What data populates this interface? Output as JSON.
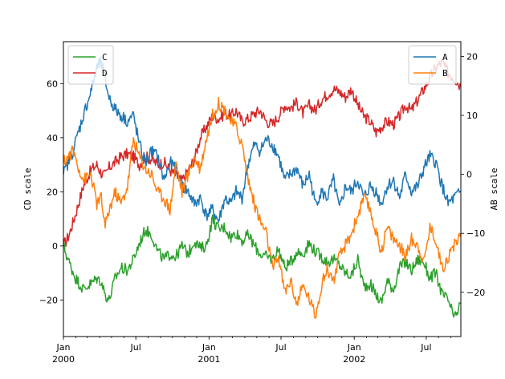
{
  "chart_data": {
    "type": "line",
    "title": "",
    "xlabel": "",
    "x_range": [
      "2000-01-01",
      "2002-09-26"
    ],
    "x_major_ticks": [
      {
        "date": "2000-01-01",
        "label": "Jan",
        "year": "2000"
      },
      {
        "date": "2000-07-01",
        "label": "Jul",
        "year": ""
      },
      {
        "date": "2001-01-01",
        "label": "Jan",
        "year": "2001"
      },
      {
        "date": "2001-07-01",
        "label": "Jul",
        "year": ""
      },
      {
        "date": "2002-01-01",
        "label": "Jan",
        "year": "2002"
      },
      {
        "date": "2002-07-01",
        "label": "Jul",
        "year": ""
      }
    ],
    "left_axis": {
      "label": "CD scale",
      "ylim": [
        -33.5,
        75.5
      ],
      "ticks": [
        -20,
        0,
        20,
        40,
        60
      ]
    },
    "right_axis": {
      "label": "AB scale",
      "ylim": [
        -27.5,
        22.5
      ],
      "ticks": [
        -20,
        -10,
        0,
        10,
        20
      ]
    },
    "legends": {
      "left": {
        "position": "upper-left",
        "entries": [
          "C",
          "D"
        ]
      },
      "right": {
        "position": "upper-right",
        "entries": [
          "A",
          "B"
        ]
      }
    },
    "series": [
      {
        "name": "A",
        "axis": "right",
        "color": "#1f77b4",
        "x": [
          "2000-01-01",
          "2000-01-25",
          "2000-02-20",
          "2000-03-10",
          "2000-03-25",
          "2000-04-05",
          "2000-04-15",
          "2000-04-25",
          "2000-05-10",
          "2000-05-25",
          "2000-06-10",
          "2000-06-25",
          "2000-07-10",
          "2000-07-25",
          "2000-08-10",
          "2000-08-25",
          "2000-09-10",
          "2000-09-25",
          "2000-10-10",
          "2000-10-25",
          "2000-11-10",
          "2000-11-25",
          "2000-12-10",
          "2000-12-25",
          "2001-01-10",
          "2001-01-25",
          "2001-02-10",
          "2001-02-25",
          "2001-03-10",
          "2001-03-25",
          "2001-04-10",
          "2001-04-25",
          "2001-05-10",
          "2001-05-25",
          "2001-06-10",
          "2001-06-25",
          "2001-07-10",
          "2001-07-25",
          "2001-08-10",
          "2001-08-25",
          "2001-09-10",
          "2001-09-25",
          "2001-10-10",
          "2001-10-25",
          "2001-11-10",
          "2001-11-25",
          "2001-12-10",
          "2001-12-25",
          "2002-01-10",
          "2002-01-25",
          "2002-02-10",
          "2002-02-25",
          "2002-03-10",
          "2002-03-25",
          "2002-04-10",
          "2002-04-25",
          "2002-05-10",
          "2002-05-25",
          "2002-06-10",
          "2002-06-25",
          "2002-07-10",
          "2002-07-25",
          "2002-08-10",
          "2002-08-25",
          "2002-09-10",
          "2002-09-26"
        ],
        "y": [
          0,
          4,
          10,
          14,
          18,
          19,
          16,
          13,
          11,
          10,
          9,
          10,
          5,
          2,
          4,
          3,
          -1,
          2,
          1,
          -2,
          -3,
          -5,
          -4,
          -7,
          -6,
          -8,
          -4,
          -5,
          -3,
          -4,
          2,
          5,
          4,
          6,
          5,
          3,
          -1,
          0,
          1,
          -2,
          0,
          -5,
          -3,
          -4,
          -1,
          -6,
          -2,
          -3,
          -1,
          -4,
          -2,
          -3,
          -5,
          -2,
          -1,
          -4,
          0,
          -3,
          -2,
          1,
          3,
          2,
          -2,
          -5,
          -4,
          -3
        ]
      },
      {
        "name": "B",
        "axis": "right",
        "color": "#ff7f0e",
        "x": [
          "2000-01-01",
          "2000-01-25",
          "2000-02-20",
          "2000-03-10",
          "2000-03-25",
          "2000-04-05",
          "2000-04-15",
          "2000-04-25",
          "2000-05-10",
          "2000-05-25",
          "2000-06-10",
          "2000-06-25",
          "2000-07-10",
          "2000-07-25",
          "2000-08-10",
          "2000-08-25",
          "2000-09-10",
          "2000-09-25",
          "2000-10-10",
          "2000-10-25",
          "2000-11-10",
          "2000-11-25",
          "2000-12-10",
          "2000-12-25",
          "2001-01-10",
          "2001-01-25",
          "2001-02-10",
          "2001-02-25",
          "2001-03-10",
          "2001-03-25",
          "2001-04-10",
          "2001-04-25",
          "2001-05-10",
          "2001-05-25",
          "2001-06-10",
          "2001-06-25",
          "2001-07-10",
          "2001-07-25",
          "2001-08-10",
          "2001-08-25",
          "2001-09-10",
          "2001-09-25",
          "2001-10-10",
          "2001-10-25",
          "2001-11-10",
          "2001-11-25",
          "2001-12-10",
          "2001-12-25",
          "2002-01-10",
          "2002-01-25",
          "2002-02-10",
          "2002-02-25",
          "2002-03-10",
          "2002-03-25",
          "2002-04-10",
          "2002-04-25",
          "2002-05-10",
          "2002-05-25",
          "2002-06-10",
          "2002-06-25",
          "2002-07-10",
          "2002-07-25",
          "2002-08-10",
          "2002-08-25",
          "2002-09-10",
          "2002-09-26"
        ],
        "y": [
          2,
          4,
          -1,
          0,
          -5,
          -4,
          -9,
          -6,
          -3,
          -5,
          -2,
          6,
          3,
          1,
          0,
          -3,
          -4,
          -6,
          2,
          -3,
          0,
          3,
          1,
          6,
          10,
          12,
          11,
          9,
          8,
          5,
          -1,
          -5,
          -8,
          -10,
          -16,
          -14,
          -20,
          -18,
          -22,
          -19,
          -21,
          -24,
          -19,
          -16,
          -18,
          -14,
          -12,
          -10,
          -7,
          -4,
          -6,
          -10,
          -13,
          -9,
          -11,
          -12,
          -14,
          -11,
          -12,
          -15,
          -9,
          -11,
          -16,
          -14,
          -12,
          -10
        ]
      },
      {
        "name": "C",
        "axis": "left",
        "color": "#2ca02c",
        "x": [
          "2000-01-01",
          "2000-01-15",
          "2000-02-01",
          "2000-02-20",
          "2000-03-10",
          "2000-03-25",
          "2000-04-05",
          "2000-04-15",
          "2000-04-25",
          "2000-05-10",
          "2000-05-25",
          "2000-06-10",
          "2000-06-25",
          "2000-07-10",
          "2000-07-25",
          "2000-08-10",
          "2000-08-25",
          "2000-09-10",
          "2000-09-25",
          "2000-10-10",
          "2000-10-25",
          "2000-11-10",
          "2000-11-25",
          "2000-12-10",
          "2000-12-25",
          "2001-01-10",
          "2001-01-25",
          "2001-02-10",
          "2001-02-25",
          "2001-03-10",
          "2001-03-25",
          "2001-04-10",
          "2001-04-25",
          "2001-05-10",
          "2001-05-25",
          "2001-06-10",
          "2001-06-25",
          "2001-07-10",
          "2001-07-25",
          "2001-08-10",
          "2001-08-25",
          "2001-09-10",
          "2001-09-25",
          "2001-10-10",
          "2001-10-25",
          "2001-11-10",
          "2001-11-25",
          "2001-12-10",
          "2001-12-25",
          "2002-01-10",
          "2002-01-25",
          "2002-02-10",
          "2002-02-25",
          "2002-03-10",
          "2002-03-25",
          "2002-04-10",
          "2002-04-25",
          "2002-05-10",
          "2002-05-25",
          "2002-06-10",
          "2002-06-25",
          "2002-07-10",
          "2002-07-25",
          "2002-08-10",
          "2002-08-25",
          "2002-09-10",
          "2002-09-26"
        ],
        "y": [
          0,
          -6,
          -12,
          -16,
          -14,
          -12,
          -13,
          -18,
          -20,
          -12,
          -8,
          -9,
          -5,
          1,
          6,
          4,
          -2,
          -5,
          -3,
          -4,
          0,
          -3,
          2,
          -1,
          0,
          10,
          6,
          7,
          3,
          5,
          2,
          4,
          0,
          -3,
          -4,
          -5,
          -1,
          -8,
          -6,
          -2,
          -3,
          1,
          -2,
          -4,
          -6,
          -5,
          -7,
          -10,
          -11,
          -5,
          -15,
          -14,
          -18,
          -21,
          -13,
          -16,
          -8,
          -6,
          -9,
          -5,
          -6,
          -12,
          -10,
          -18,
          -20,
          -27,
          -21
        ]
      },
      {
        "name": "D",
        "axis": "left",
        "color": "#d62728",
        "x": [
          "2000-01-01",
          "2000-01-15",
          "2000-02-01",
          "2000-02-20",
          "2000-03-10",
          "2000-03-25",
          "2000-04-05",
          "2000-04-15",
          "2000-04-25",
          "2000-05-10",
          "2000-05-25",
          "2000-06-10",
          "2000-06-25",
          "2000-07-10",
          "2000-07-25",
          "2000-08-10",
          "2000-08-25",
          "2000-09-10",
          "2000-09-25",
          "2000-10-10",
          "2000-10-25",
          "2000-11-10",
          "2000-11-25",
          "2000-12-10",
          "2000-12-25",
          "2001-01-10",
          "2001-01-25",
          "2001-02-10",
          "2001-02-25",
          "2001-03-10",
          "2001-03-25",
          "2001-04-10",
          "2001-04-25",
          "2001-05-10",
          "2001-05-25",
          "2001-06-10",
          "2001-06-25",
          "2001-07-10",
          "2001-07-25",
          "2001-08-10",
          "2001-08-25",
          "2001-09-10",
          "2001-09-25",
          "2001-10-10",
          "2001-10-25",
          "2001-11-10",
          "2001-11-25",
          "2001-12-10",
          "2001-12-25",
          "2002-01-10",
          "2002-01-25",
          "2002-02-10",
          "2002-02-25",
          "2002-03-10",
          "2002-03-25",
          "2002-04-10",
          "2002-04-25",
          "2002-05-10",
          "2002-05-25",
          "2002-06-10",
          "2002-06-25",
          "2002-07-10",
          "2002-07-25",
          "2002-08-10",
          "2002-08-25",
          "2002-09-10",
          "2002-09-26"
        ],
        "y": [
          0,
          4,
          12,
          22,
          28,
          30,
          27,
          26,
          29,
          31,
          33,
          34,
          33,
          30,
          33,
          32,
          30,
          31,
          28,
          26,
          24,
          28,
          32,
          40,
          44,
          48,
          47,
          49,
          48,
          50,
          46,
          47,
          49,
          50,
          46,
          45,
          48,
          52,
          51,
          53,
          49,
          52,
          50,
          54,
          56,
          58,
          57,
          55,
          58,
          52,
          48,
          46,
          42,
          44,
          46,
          45,
          48,
          52,
          50,
          54,
          58,
          62,
          66,
          68,
          64,
          62,
          59
        ]
      }
    ]
  }
}
